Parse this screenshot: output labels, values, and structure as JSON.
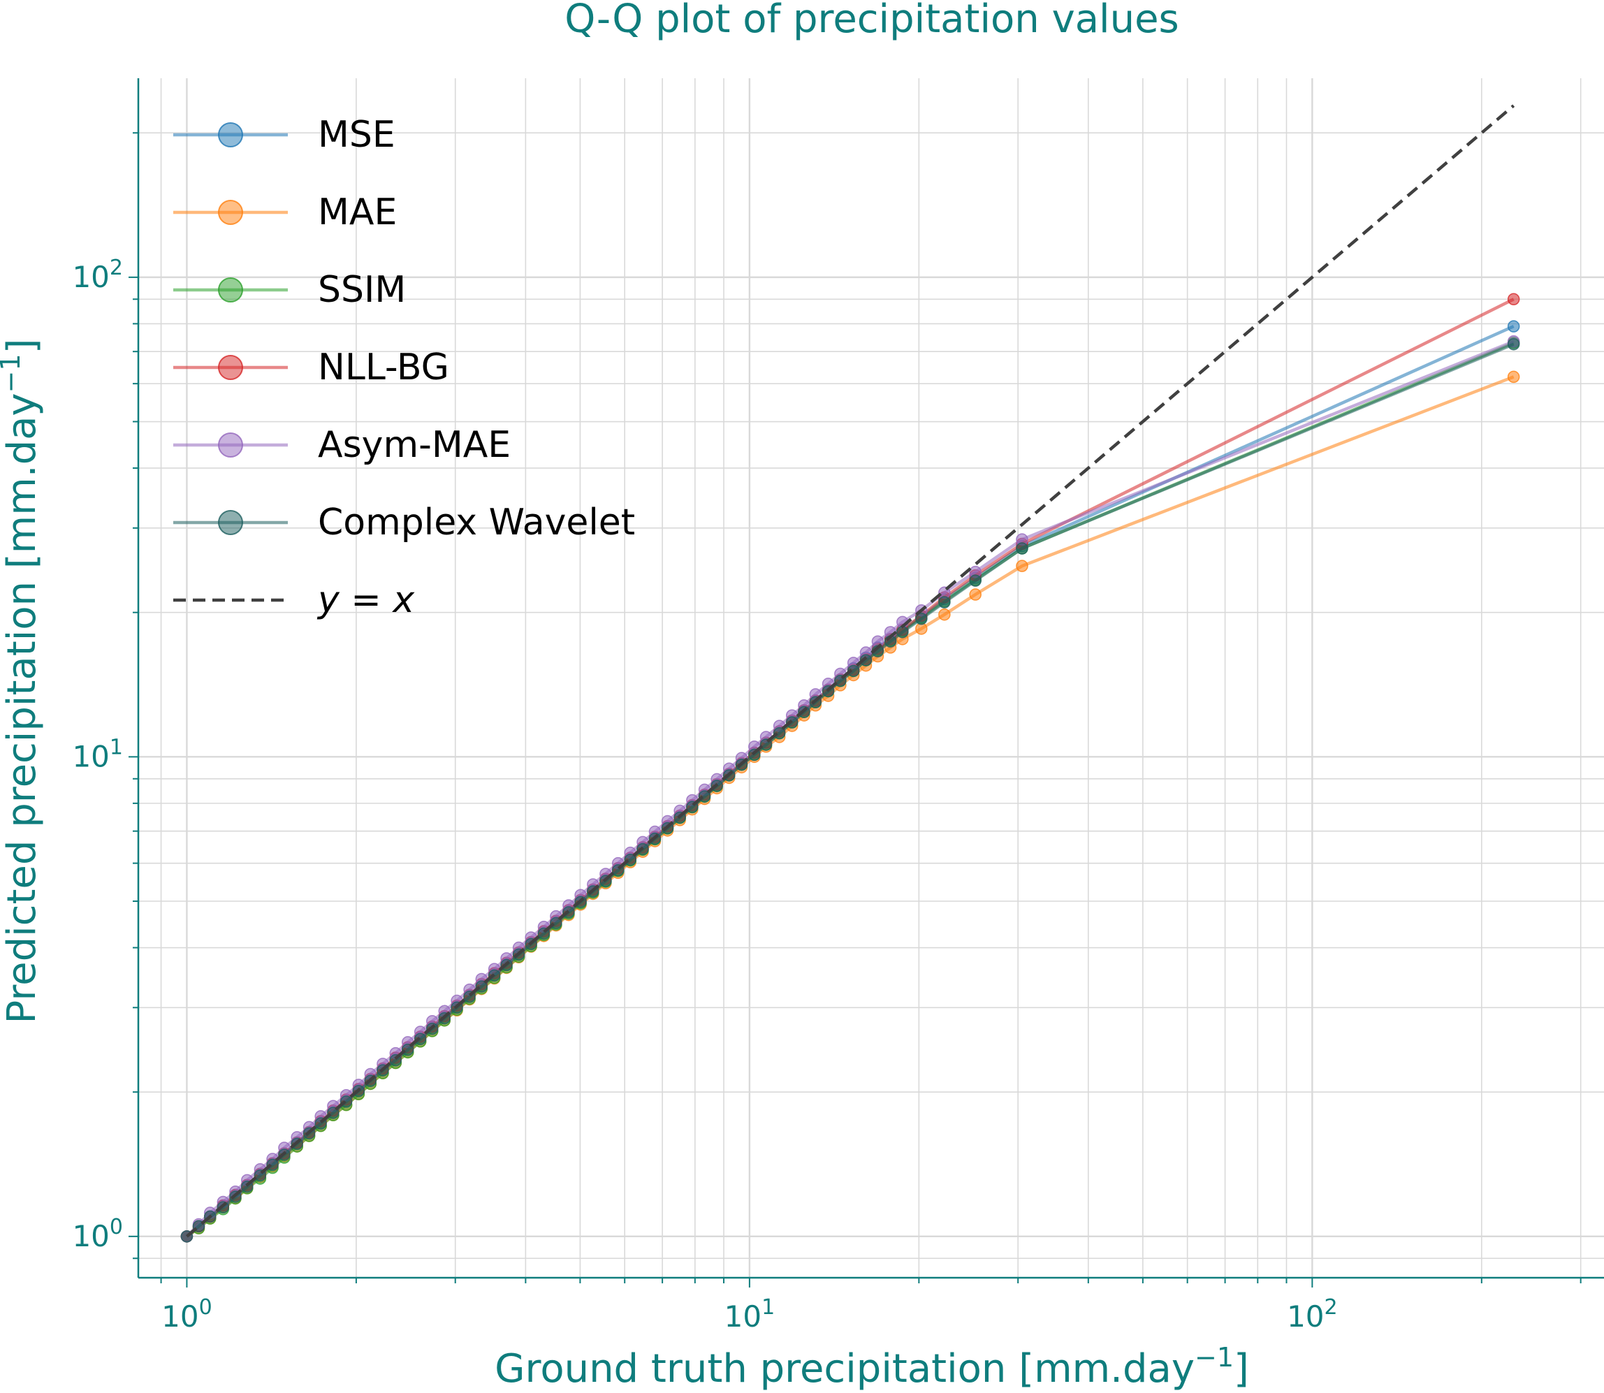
{
  "chart_data": {
    "type": "line",
    "title": "Q-Q plot of precipitation values",
    "xlabel": "Ground truth precipitation [mm.day",
    "ylabel": "Predicted precipitation [mm.day",
    "unit_exponent": "−1",
    "xscale": "log",
    "yscale": "log",
    "xlim": [
      0.82,
      330
    ],
    "ylim": [
      0.82,
      260
    ],
    "grid": true,
    "legend_position": "top-left",
    "colors": {
      "text": "#0f7d7d",
      "axis": "#0f7d7d",
      "grid": "#d9d9d9",
      "MSE": "#1f77b4",
      "MAE": "#ff7f0e",
      "SSIM": "#2ca02c",
      "NLL-BG": "#d62728",
      "Asym-MAE": "#9467bd",
      "Complex Wavelet": "#1e5f5f",
      "reference": "#404040"
    },
    "x_ticks": [
      {
        "base": "10",
        "exp": "0",
        "value": 1
      },
      {
        "base": "10",
        "exp": "1",
        "value": 10
      },
      {
        "base": "10",
        "exp": "2",
        "value": 100
      }
    ],
    "y_ticks": [
      {
        "base": "10",
        "exp": "0",
        "value": 1
      },
      {
        "base": "10",
        "exp": "1",
        "value": 10
      },
      {
        "base": "10",
        "exp": "2",
        "value": 100
      }
    ],
    "x": [
      1.0,
      1.05,
      1.1,
      1.16,
      1.22,
      1.28,
      1.35,
      1.42,
      1.49,
      1.57,
      1.65,
      1.73,
      1.82,
      1.92,
      2.02,
      2.12,
      2.23,
      2.35,
      2.47,
      2.6,
      2.73,
      2.87,
      3.02,
      3.18,
      3.34,
      3.52,
      3.7,
      3.89,
      4.09,
      4.31,
      4.53,
      4.77,
      5.01,
      5.27,
      5.55,
      5.84,
      6.14,
      6.46,
      6.79,
      7.15,
      7.52,
      7.91,
      8.32,
      8.75,
      9.2,
      9.68,
      10.2,
      10.7,
      11.3,
      11.9,
      12.5,
      13.1,
      13.8,
      14.5,
      15.3,
      16.1,
      16.9,
      17.8,
      18.7,
      20.2,
      22.2,
      25.2,
      30.5,
      228.0
    ],
    "series": [
      {
        "name": "MSE",
        "color": "#1f77b4",
        "values": [
          1.0,
          1.05,
          1.1,
          1.16,
          1.22,
          1.28,
          1.35,
          1.42,
          1.49,
          1.57,
          1.65,
          1.73,
          1.82,
          1.92,
          2.02,
          2.12,
          2.23,
          2.35,
          2.47,
          2.6,
          2.73,
          2.87,
          3.02,
          3.18,
          3.34,
          3.52,
          3.7,
          3.89,
          4.09,
          4.31,
          4.53,
          4.77,
          5.01,
          5.27,
          5.55,
          5.84,
          6.14,
          6.46,
          6.79,
          7.15,
          7.52,
          7.91,
          8.32,
          8.75,
          9.2,
          9.68,
          10.2,
          10.7,
          11.3,
          11.9,
          12.5,
          13.1,
          13.8,
          14.5,
          15.3,
          16.1,
          16.9,
          17.6,
          18.4,
          19.6,
          21.3,
          23.6,
          27.5,
          79.0
        ]
      },
      {
        "name": "MAE",
        "color": "#ff7f0e",
        "values": [
          1.0,
          1.04,
          1.09,
          1.15,
          1.2,
          1.26,
          1.33,
          1.4,
          1.47,
          1.54,
          1.62,
          1.7,
          1.79,
          1.88,
          1.98,
          2.08,
          2.19,
          2.3,
          2.42,
          2.55,
          2.68,
          2.82,
          2.96,
          3.12,
          3.28,
          3.45,
          3.63,
          3.82,
          4.02,
          4.23,
          4.45,
          4.68,
          4.92,
          5.18,
          5.45,
          5.73,
          6.03,
          6.34,
          6.67,
          7.02,
          7.38,
          7.77,
          8.17,
          8.6,
          9.04,
          9.51,
          10.0,
          10.5,
          11.0,
          11.6,
          12.2,
          12.8,
          13.4,
          14.1,
          14.8,
          15.5,
          16.2,
          16.9,
          17.6,
          18.5,
          19.8,
          21.8,
          25.0,
          62.0
        ]
      },
      {
        "name": "SSIM",
        "color": "#2ca02c",
        "values": [
          1.0,
          1.04,
          1.09,
          1.14,
          1.2,
          1.26,
          1.32,
          1.39,
          1.46,
          1.54,
          1.62,
          1.7,
          1.79,
          1.88,
          1.98,
          2.08,
          2.19,
          2.3,
          2.42,
          2.55,
          2.68,
          2.82,
          2.97,
          3.13,
          3.29,
          3.46,
          3.64,
          3.83,
          4.03,
          4.25,
          4.47,
          4.71,
          4.95,
          5.21,
          5.49,
          5.78,
          6.08,
          6.4,
          6.73,
          7.09,
          7.46,
          7.85,
          8.26,
          8.69,
          9.15,
          9.63,
          10.1,
          10.6,
          11.2,
          11.8,
          12.4,
          13.0,
          13.7,
          14.4,
          15.1,
          15.9,
          16.7,
          17.5,
          18.3,
          19.5,
          21.1,
          23.4,
          27.2,
          73.0
        ]
      },
      {
        "name": "NLL-BG",
        "color": "#d62728",
        "values": [
          1.0,
          1.05,
          1.1,
          1.16,
          1.22,
          1.28,
          1.35,
          1.42,
          1.49,
          1.57,
          1.65,
          1.74,
          1.83,
          1.93,
          2.03,
          2.13,
          2.24,
          2.36,
          2.48,
          2.61,
          2.74,
          2.88,
          3.03,
          3.19,
          3.36,
          3.54,
          3.72,
          3.91,
          4.11,
          4.33,
          4.55,
          4.79,
          5.03,
          5.29,
          5.57,
          5.86,
          6.16,
          6.48,
          6.81,
          7.17,
          7.54,
          7.93,
          8.34,
          8.77,
          9.22,
          9.7,
          10.2,
          10.7,
          11.3,
          11.9,
          12.5,
          13.1,
          13.8,
          14.5,
          15.2,
          16.0,
          16.8,
          17.6,
          18.4,
          19.7,
          21.5,
          23.9,
          27.8,
          90.0
        ]
      },
      {
        "name": "Asym-MAE",
        "color": "#9467bd",
        "values": [
          1.0,
          1.06,
          1.12,
          1.18,
          1.24,
          1.31,
          1.38,
          1.45,
          1.53,
          1.61,
          1.69,
          1.78,
          1.87,
          1.97,
          2.07,
          2.18,
          2.29,
          2.41,
          2.54,
          2.67,
          2.81,
          2.95,
          3.1,
          3.27,
          3.44,
          3.61,
          3.8,
          4.0,
          4.2,
          4.42,
          4.65,
          4.9,
          5.15,
          5.42,
          5.7,
          6.0,
          6.31,
          6.64,
          6.98,
          7.34,
          7.72,
          8.12,
          8.54,
          8.98,
          9.45,
          9.94,
          10.5,
          11.0,
          11.6,
          12.2,
          12.8,
          13.5,
          14.2,
          14.9,
          15.7,
          16.5,
          17.4,
          18.2,
          19.1,
          20.2,
          22.0,
          24.3,
          28.4,
          73.5
        ]
      },
      {
        "name": "Complex Wavelet",
        "color": "#1e5f5f",
        "values": [
          1.0,
          1.05,
          1.1,
          1.15,
          1.21,
          1.27,
          1.34,
          1.41,
          1.48,
          1.56,
          1.64,
          1.72,
          1.81,
          1.91,
          2.01,
          2.11,
          2.22,
          2.33,
          2.45,
          2.58,
          2.71,
          2.85,
          3.0,
          3.16,
          3.32,
          3.5,
          3.68,
          3.87,
          4.07,
          4.28,
          4.5,
          4.74,
          4.98,
          5.24,
          5.51,
          5.8,
          6.1,
          6.42,
          6.75,
          7.1,
          7.47,
          7.86,
          8.27,
          8.7,
          9.15,
          9.63,
          10.1,
          10.6,
          11.2,
          11.8,
          12.4,
          13.0,
          13.7,
          14.4,
          15.1,
          15.9,
          16.6,
          17.4,
          18.2,
          19.4,
          21.0,
          23.3,
          27.2,
          72.5
        ]
      }
    ],
    "reference": {
      "label": "y = x",
      "x": [
        1.0,
        228.0
      ],
      "y": [
        1.0,
        228.0
      ]
    }
  }
}
